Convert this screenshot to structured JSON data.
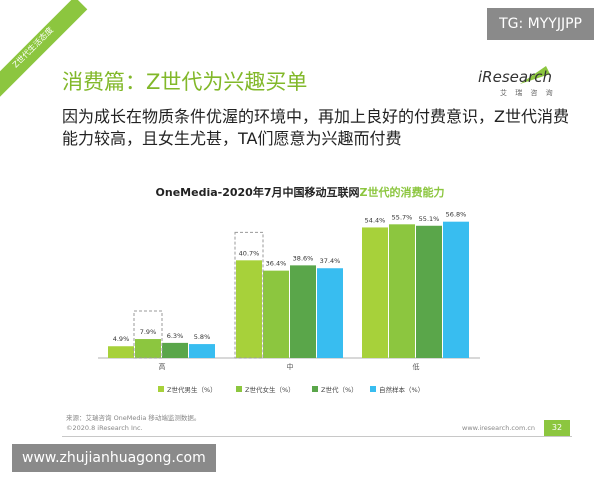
{
  "corner_label": "Z世代生活态度",
  "badge": "TG: MYYJJPP",
  "title": "消费篇：Z世代为兴趣买单",
  "logo": {
    "name": "iResearch",
    "sub": "艾 瑞 咨 询"
  },
  "subtitle": "因为成长在物质条件优渥的环境中，再加上良好的付费意识，Z世代消费能力较高，且女生尤甚，TA们愿意为兴趣而付费",
  "chart_title": {
    "prefix": "OneMedia-2020年7月中国移动互联网",
    "highlight": "Z世代的消费能力"
  },
  "chart_data": {
    "type": "bar",
    "categories": [
      "高",
      "中",
      "低"
    ],
    "series": [
      {
        "name": "Z世代男生（%）",
        "color": "#a7d13a",
        "values": [
          4.9,
          40.7,
          54.4
        ]
      },
      {
        "name": "Z世代女生（%）",
        "color": "#8cc63f",
        "values": [
          7.9,
          36.4,
          55.7
        ]
      },
      {
        "name": "Z世代（%）",
        "color": "#5aa64a",
        "values": [
          6.3,
          38.6,
          55.1
        ]
      },
      {
        "name": "自然样本（%）",
        "color": "#38bdf0",
        "values": [
          5.8,
          37.4,
          56.8
        ]
      }
    ],
    "value_labels": [
      [
        "4.9%",
        "40.7%",
        "54.4%"
      ],
      [
        "7.9%",
        "36.4%",
        "55.7%"
      ],
      [
        "6.3%",
        "38.6%",
        "55.1%"
      ],
      [
        "5.8%",
        "37.4%",
        "56.8%"
      ]
    ],
    "highlight_boxes": [
      {
        "category": "高",
        "series": "Z世代女生（%）"
      },
      {
        "category": "中",
        "series": "Z世代男生（%）"
      }
    ],
    "ylim": [
      0,
      60
    ],
    "grid": false,
    "legend": "bottom"
  },
  "source": "来源：艾瑞咨询 OneMedia 移动端监测数据。",
  "copyright": "©2020.8 iResearch Inc.",
  "site_url": "www.iresearch.com.cn",
  "page_num": "32",
  "watermark": "www.zhujianhuagong.com"
}
